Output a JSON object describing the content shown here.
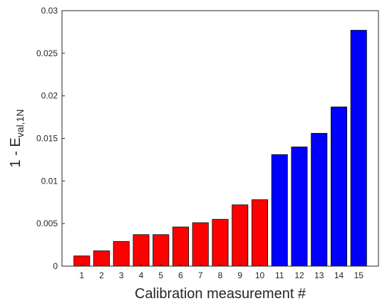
{
  "chart_data": {
    "type": "bar",
    "title": "",
    "xlabel": "Calibration measurement #",
    "ylabel_main": "1 - E",
    "ylabel_sub": "val,1N",
    "ylim": [
      0,
      0.03
    ],
    "yticks": [
      0,
      0.005,
      0.01,
      0.015,
      0.02,
      0.025,
      0.03
    ],
    "ytick_labels": [
      "0",
      "0.005",
      "0.01",
      "0.015",
      "0.02",
      "0.025",
      "0.03"
    ],
    "categories": [
      "1",
      "2",
      "3",
      "4",
      "5",
      "6",
      "7",
      "8",
      "9",
      "10",
      "11",
      "12",
      "13",
      "14",
      "15"
    ],
    "values": [
      0.0012,
      0.0018,
      0.0029,
      0.0037,
      0.0037,
      0.0046,
      0.0051,
      0.0055,
      0.0072,
      0.0078,
      0.0131,
      0.014,
      0.0156,
      0.0187,
      0.0277
    ],
    "bar_colors": [
      "#ff0000",
      "#ff0000",
      "#ff0000",
      "#ff0000",
      "#ff0000",
      "#ff0000",
      "#ff0000",
      "#ff0000",
      "#ff0000",
      "#ff0000",
      "#0000ff",
      "#0000ff",
      "#0000ff",
      "#0000ff",
      "#0000ff"
    ],
    "grid": false,
    "legend": "none"
  }
}
